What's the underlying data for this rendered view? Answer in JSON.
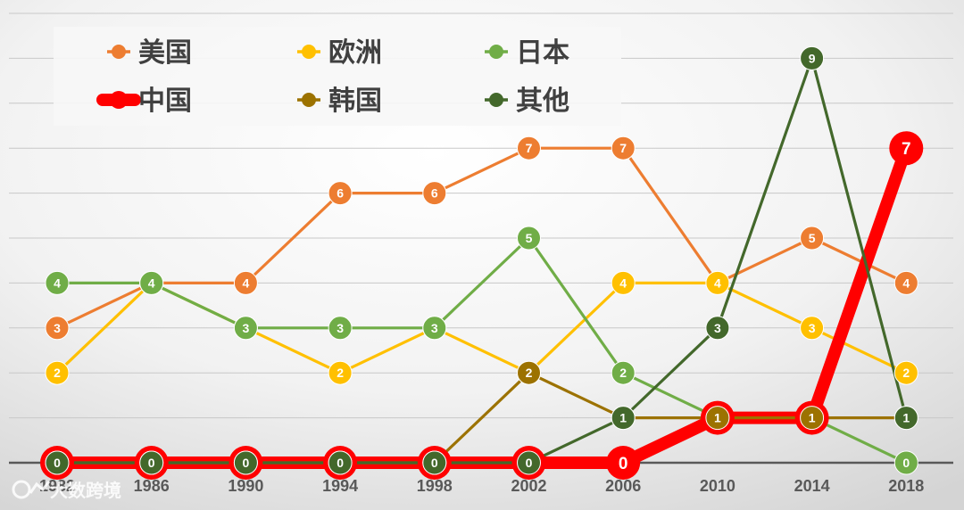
{
  "chart_data": {
    "type": "line",
    "title": "",
    "xlabel": "",
    "ylabel": "",
    "x": [
      "1982",
      "1986",
      "1990",
      "1994",
      "1998",
      "2002",
      "2006",
      "2010",
      "2014",
      "2018"
    ],
    "ylim": [
      0,
      10
    ],
    "grid": true,
    "legend_position": "top-left",
    "series": [
      {
        "name": "美国",
        "color": "#ED7D31",
        "values": [
          3,
          4,
          4,
          6,
          6,
          7,
          7,
          4,
          5,
          4
        ]
      },
      {
        "name": "欧洲",
        "color": "#FFC000",
        "values": [
          2,
          4,
          3,
          2,
          3,
          2,
          4,
          4,
          3,
          2
        ]
      },
      {
        "name": "日本",
        "color": "#70AD47",
        "values": [
          4,
          4,
          3,
          3,
          3,
          5,
          2,
          1,
          1,
          0
        ]
      },
      {
        "name": "中国",
        "color": "#FF0000",
        "values": [
          0,
          0,
          0,
          0,
          0,
          0,
          0,
          1,
          1,
          7
        ]
      },
      {
        "name": "韩国",
        "color": "#9C7200",
        "values": [
          0,
          0,
          0,
          0,
          0,
          2,
          1,
          1,
          1,
          1
        ]
      },
      {
        "name": "其他",
        "color": "#43682B",
        "values": [
          0,
          0,
          0,
          0,
          0,
          0,
          1,
          3,
          9,
          1
        ]
      }
    ]
  },
  "watermark": {
    "logo_icon": "dashboard-logo-icon",
    "text": "大数跨境"
  }
}
